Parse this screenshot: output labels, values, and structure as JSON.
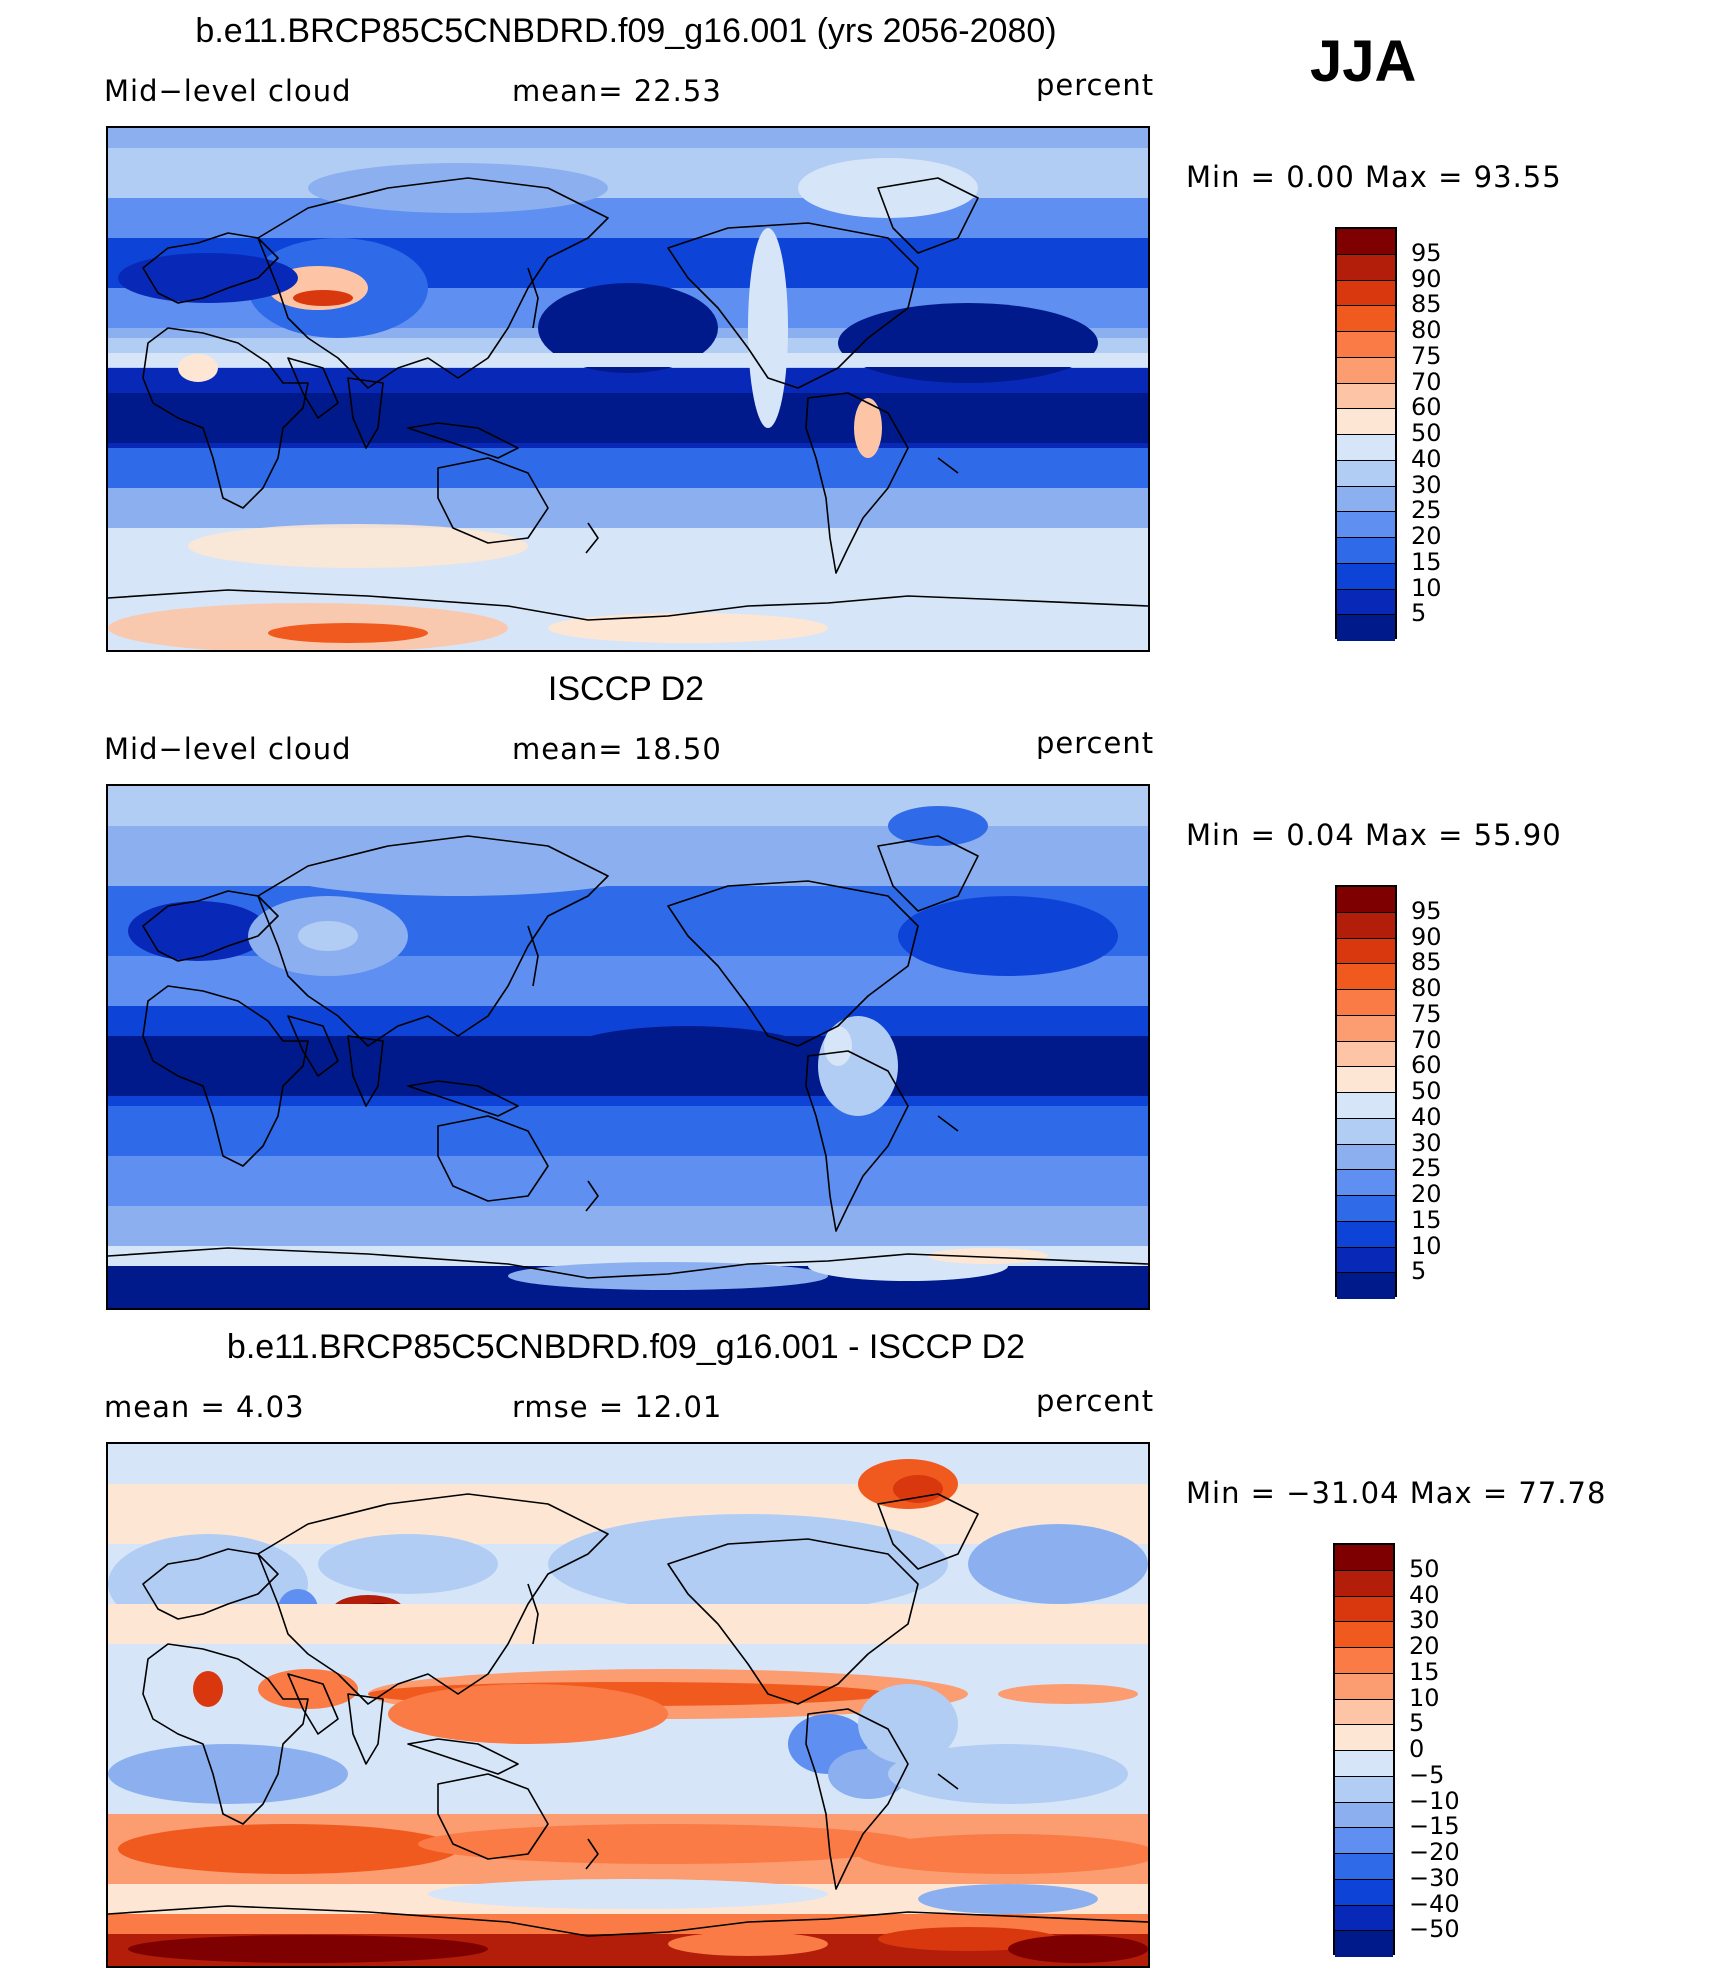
{
  "season": "JJA",
  "panels": [
    {
      "title": "b.e11.BRCP85C5CNBDRD.f09_g16.001 (yrs 2056-2080)",
      "left_label": "Mid−level cloud",
      "center_label": "mean=   22.53",
      "right_label": "percent",
      "minmax": "Min =    0.00 Max =   93.55",
      "field": "model"
    },
    {
      "title": "ISCCP D2",
      "left_label": "Mid−level cloud",
      "center_label": "mean=   18.50",
      "right_label": "percent",
      "minmax": "Min =    0.04 Max =   55.90",
      "field": "obs"
    },
    {
      "title": "b.e11.BRCP85C5CNBDRD.f09_g16.001 - ISCCP D2",
      "left_label": "mean =    4.03",
      "center_label": "rmse =   12.01",
      "right_label": "percent",
      "minmax": "Min = −31.04 Max =   77.78",
      "field": "diff"
    }
  ],
  "colorbars": {
    "abs": {
      "labels": [
        "95",
        "90",
        "85",
        "80",
        "75",
        "70",
        "60",
        "50",
        "40",
        "30",
        "25",
        "20",
        "15",
        "10",
        "5"
      ],
      "colors": [
        "#7f0000",
        "#b21e0a",
        "#d9380f",
        "#f05a1e",
        "#fa7b45",
        "#fc9c71",
        "#fdc5a6",
        "#fde7d4",
        "#d6e6f8",
        "#b2cdf4",
        "#8cb0ef",
        "#5f8ff0",
        "#2f6ae8",
        "#0e43d8",
        "#0829b8",
        "#001a8c"
      ]
    },
    "diff": {
      "labels": [
        "50",
        "40",
        "30",
        "20",
        "15",
        "10",
        "5",
        "0",
        "−5",
        "−10",
        "−15",
        "−20",
        "−30",
        "−40",
        "−50"
      ],
      "colors": [
        "#7f0000",
        "#b21e0a",
        "#d9380f",
        "#f05a1e",
        "#fa7b45",
        "#fc9c71",
        "#fdc5a6",
        "#fde7d4",
        "#d6e6f8",
        "#b2cdf4",
        "#8cb0ef",
        "#5f8ff0",
        "#2f6ae8",
        "#0e43d8",
        "#0829b8",
        "#001a8c"
      ]
    }
  }
}
